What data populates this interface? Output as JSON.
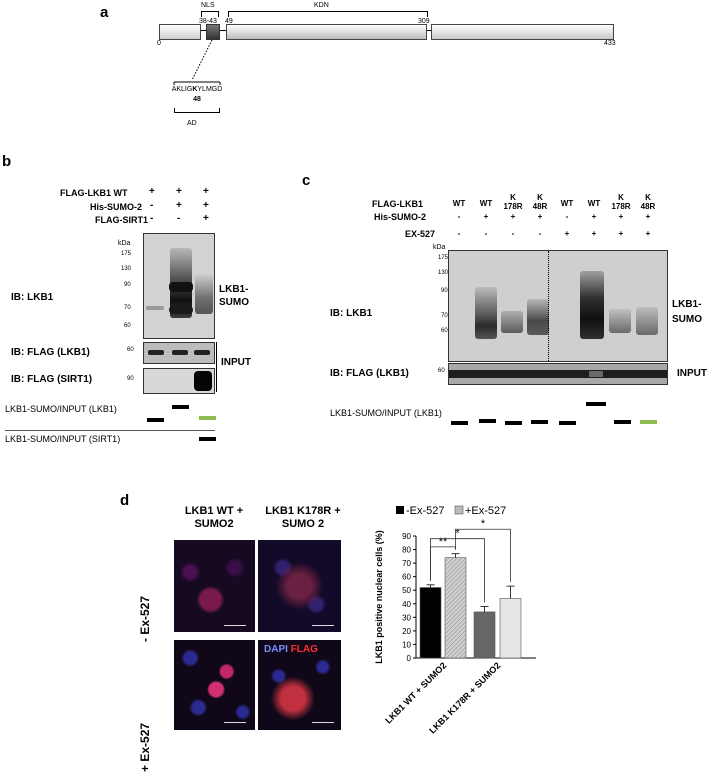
{
  "panel_a": {
    "letter": "a",
    "nls_label": "NLS",
    "nls_range": "38-43",
    "kdn_label": "KDN",
    "kdn_start": "49",
    "kdn_end": "309",
    "pos_start": "0",
    "pos_end": "433",
    "seq_pre": "AKLIG",
    "seq_k": "K",
    "seq_post": "YLMGD",
    "seq_num": "48",
    "ad_label": "AD"
  },
  "panel_b": {
    "letter": "b",
    "rows": [
      {
        "label": "FLAG-LKB1 WT",
        "marks": [
          "+",
          "+",
          "+"
        ]
      },
      {
        "label": "His-SUMO-2",
        "marks": [
          "-",
          "+",
          "+"
        ]
      },
      {
        "label": "FLAG-SIRT1",
        "marks": [
          "-",
          "-",
          "+"
        ]
      }
    ],
    "kda": "kDa",
    "ladder": [
      "175",
      "130",
      "90",
      "70",
      "60"
    ],
    "ib_lkb1": "IB: LKB1",
    "lkb1_sumo": "LKB1-SUMO",
    "ib_flag_lkb1": "IB: FLAG (LKB1)",
    "flag_lkb1_kda": "60",
    "input": "INPUT",
    "ib_flag_sirt1": "IB: FLAG (SIRT1)",
    "flag_sirt1_kda": "90",
    "ratio_lkb1": "LKB1-SUMO/INPUT (LKB1)",
    "ratio_sirt1": "LKB1-SUMO/INPUT (SIRT1)"
  },
  "panel_c": {
    "letter": "c",
    "row_flag": "FLAG-LKB1",
    "row_sumo": "His-SUMO-2",
    "row_ex": "EX-527",
    "lanes": [
      {
        "top": "WT",
        "sub": "",
        "sumo": "-",
        "ex": "-"
      },
      {
        "top": "WT",
        "sub": "",
        "sumo": "+",
        "ex": "-"
      },
      {
        "top": "K",
        "sub": "178R",
        "sumo": "+",
        "ex": "-"
      },
      {
        "top": "K",
        "sub": "48R",
        "sumo": "+",
        "ex": "-"
      },
      {
        "top": "WT",
        "sub": "",
        "sumo": "-",
        "ex": "+"
      },
      {
        "top": "WT",
        "sub": "",
        "sumo": "+",
        "ex": "+"
      },
      {
        "top": "K",
        "sub": "178R",
        "sumo": "+",
        "ex": "+"
      },
      {
        "top": "K",
        "sub": "48R",
        "sumo": "+",
        "ex": "+"
      }
    ],
    "kda": "kDa",
    "ladder": [
      "175",
      "130",
      "90",
      "70",
      "60"
    ],
    "ib_lkb1": "IB: LKB1",
    "lkb1_sumo": "LKB1-SUMO",
    "ib_flag": "IB: FLAG (LKB1)",
    "flag_kda": "60",
    "input": "INPUT",
    "ratio": "LKB1-SUMO/INPUT (LKB1)"
  },
  "panel_d": {
    "letter": "d",
    "col1": "LKB1 WT + SUMO2",
    "col2": "LKB1 K178R + SUMO 2",
    "row1": "- Ex-527",
    "row2": "+ Ex-527",
    "dapi": "DAPI",
    "flag": "FLAG",
    "dapi_color": "#7b8cff",
    "flag_color": "#ff3030"
  },
  "chart_data": {
    "type": "bar",
    "categories": [
      "LKB1 WT + SUMO2",
      "LKB1 K178R + SUMO2"
    ],
    "series": [
      {
        "name": "-Ex-527",
        "values": [
          52,
          34
        ],
        "errors": [
          2,
          4
        ],
        "colors": [
          "#000000",
          "#666666"
        ]
      },
      {
        "name": "+Ex-527",
        "values": [
          74,
          44
        ],
        "errors": [
          3,
          9
        ],
        "colors": [
          "#bbbbbb",
          "#e6e6e6"
        ]
      }
    ],
    "ylabel": "LKB1 positive nuclear cells (%)",
    "ylim": [
      0,
      90
    ],
    "yticks": [
      0,
      10,
      20,
      30,
      40,
      50,
      60,
      70,
      80,
      90
    ],
    "legend_position": "top",
    "significance": [
      "**",
      "*",
      "*"
    ]
  }
}
